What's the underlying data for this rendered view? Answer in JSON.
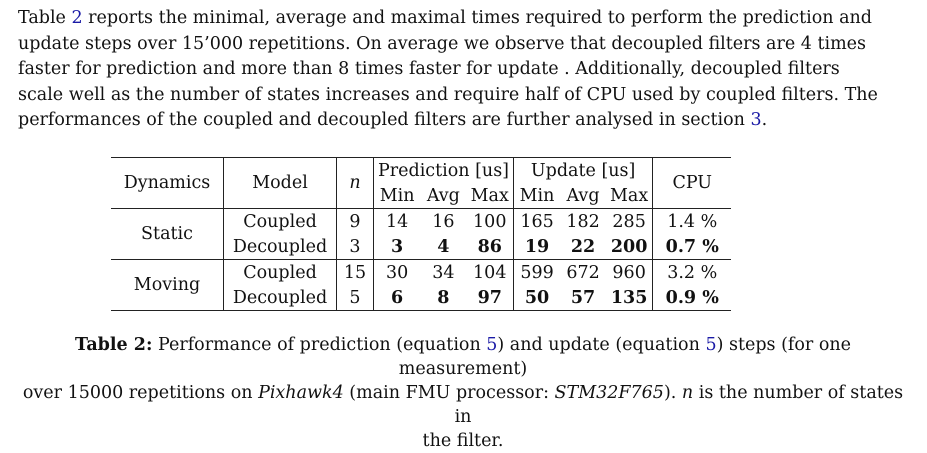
{
  "paragraph": {
    "line1_a": "Table ",
    "line1_ref": "2",
    "line1_b": " reports the minimal, average and maximal times required to perform the prediction and",
    "line2": "update steps over 15’000 repetitions.  On average we observe that decoupled filters are 4 times",
    "line3": "faster for prediction and more than 8 times faster for update .  Additionally, decoupled filters",
    "line4": "scale well as the number of states increases and require half of CPU used by coupled filters.  The",
    "line5_a": "performances of the coupled and decoupled filters are further analysed in section ",
    "line5_ref": "3",
    "line5_b": "."
  },
  "table": {
    "headers": {
      "dynamics": "Dynamics",
      "model": "Model",
      "n": "n",
      "prediction": "Prediction [us]",
      "update": "Update [us]",
      "cpu": "CPU",
      "min": "Min",
      "avg": "Avg",
      "max": "Max"
    },
    "groups": [
      {
        "dynamics": "Static",
        "rows": [
          {
            "model": "Coupled",
            "n": "9",
            "p_min": "14",
            "p_avg": "16",
            "p_max": "100",
            "u_min": "165",
            "u_avg": "182",
            "u_max": "285",
            "cpu": "1.4 %"
          },
          {
            "model": "Decoupled",
            "n": "3",
            "p_min": "3",
            "p_avg": "4",
            "p_max": "86",
            "u_min": "19",
            "u_avg": "22",
            "u_max": "200",
            "cpu": "0.7 %"
          }
        ]
      },
      {
        "dynamics": "Moving",
        "rows": [
          {
            "model": "Coupled",
            "n": "15",
            "p_min": "30",
            "p_avg": "34",
            "p_max": "104",
            "u_min": "599",
            "u_avg": "672",
            "u_max": "960",
            "cpu": "3.2 %"
          },
          {
            "model": "Decoupled",
            "n": "5",
            "p_min": "6",
            "p_avg": "8",
            "p_max": "97",
            "u_min": "50",
            "u_avg": "57",
            "u_max": "135",
            "cpu": "0.9 %"
          }
        ]
      }
    ]
  },
  "caption": {
    "label": "Table 2:",
    "t1": " Performance of prediction (equation ",
    "ref1": "5",
    "t2": ") and update (equation ",
    "ref2": "5",
    "t3": ") steps (for one measurement)",
    "t4": "over 15000 repetitions on ",
    "pixhawk": "Pixhawk4",
    "t5": " (main FMU processor: ",
    "stm": "STM32F765",
    "t6": ").  ",
    "n": "n",
    "t7": " is the number of states in",
    "t8": "the filter."
  }
}
